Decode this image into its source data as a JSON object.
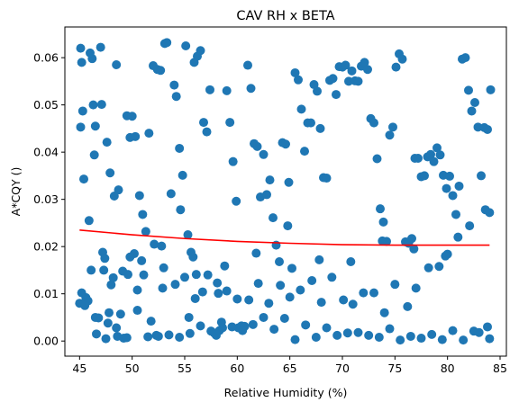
{
  "chart_data": {
    "type": "scatter",
    "title": "CAV RH x BETA",
    "xlabel": "Relative Humidity (%)",
    "ylabel": "A*CQY ()",
    "xlim": [
      43.6,
      85.6
    ],
    "ylim": [
      -0.0032,
      0.0665
    ],
    "xticks": [
      45,
      50,
      55,
      60,
      65,
      70,
      75,
      80,
      85
    ],
    "yticks": [
      0.0,
      0.01,
      0.02,
      0.03,
      0.04,
      0.05,
      0.06
    ],
    "ytick_labels": [
      "0.00",
      "0.01",
      "0.02",
      "0.03",
      "0.04",
      "0.05",
      "0.06"
    ],
    "grid": false,
    "colors": {
      "points": "#1f77b4",
      "fit": "#ff0000"
    },
    "fit_line": {
      "x": [
        45,
        50,
        55,
        60,
        65,
        70,
        75,
        80,
        84
      ],
      "y": [
        0.0235,
        0.0225,
        0.0217,
        0.0211,
        0.0207,
        0.0204,
        0.0203,
        0.0203,
        0.0203
      ]
    },
    "points": {
      "x": [
        45.1,
        45.2,
        45.3,
        45.1,
        45.6,
        45.8,
        45.0,
        45.5,
        46.2,
        46.0,
        46.5,
        46.3,
        47.0,
        47.1,
        47.6,
        47.9,
        46.4,
        47.2,
        47.4,
        47.8,
        46.8,
        45.4,
        45.9,
        46.6,
        47.7,
        48.5,
        48.7,
        48.3,
        48.0,
        48.9,
        49.5,
        49.8,
        48.6,
        49.2,
        50.0,
        50.3,
        50.7,
        49.6,
        50.5,
        51.0,
        51.3,
        50.9,
        51.6,
        52.0,
        52.4,
        52.7,
        53.1,
        53.3,
        51.8,
        52.3,
        52.9,
        53.7,
        54.0,
        54.2,
        54.5,
        54.8,
        55.1,
        54.6,
        55.3,
        55.6,
        55.9,
        56.2,
        56.5,
        56.8,
        57.1,
        57.4,
        56.0,
        55.4,
        56.7,
        57.8,
        58.0,
        58.3,
        58.6,
        58.1,
        59.0,
        59.3,
        59.6,
        59.9,
        60.1,
        60.4,
        60.7,
        61.0,
        61.3,
        61.6,
        61.9,
        62.2,
        62.5,
        62.8,
        63.1,
        63.4,
        63.7,
        64.0,
        64.3,
        64.6,
        64.9,
        65.2,
        65.5,
        65.8,
        66.1,
        66.4,
        66.7,
        67.0,
        67.3,
        67.6,
        67.9,
        68.2,
        68.5,
        68.8,
        69.1,
        69.4,
        69.7,
        70.0,
        70.3,
        70.6,
        70.9,
        71.2,
        71.5,
        71.8,
        72.1,
        72.4,
        72.7,
        73.0,
        73.3,
        73.6,
        73.9,
        74.2,
        74.5,
        74.8,
        75.1,
        75.4,
        75.7,
        76.0,
        76.3,
        76.6,
        76.9,
        77.2,
        77.5,
        77.8,
        78.1,
        78.4,
        78.7,
        79.0,
        79.3,
        79.6,
        79.9,
        80.2,
        80.5,
        80.8,
        81.1,
        81.4,
        81.7,
        82.0,
        82.3,
        82.6,
        82.9,
        83.2,
        83.5,
        83.8,
        84.1,
        84.0,
        83.6,
        82.1,
        81.0,
        80.0,
        79.2,
        78.2,
        77.0,
        76.2,
        75.0,
        74.0,
        73.0,
        72.0,
        71.0,
        70.1,
        69.0,
        68.0,
        67.1,
        66.0,
        65.0,
        64.1,
        63.0,
        62.0,
        61.1,
        60.0,
        59.0,
        58.2,
        57.2,
        56.1,
        55.0,
        54.1,
        53.0,
        52.1,
        51.1,
        50.2,
        49.1,
        48.2,
        47.3,
        46.1,
        45.2,
        83.0,
        84.0,
        81.5,
        79.5,
        77.5,
        75.5,
        73.5,
        71.5,
        69.5,
        67.5,
        65.5,
        63.5,
        61.5,
        59.5,
        57.5,
        55.5,
        53.5,
        51.5,
        49.5,
        47.5,
        82.5,
        80.5,
        78.5,
        76.5,
        74.5,
        72.5,
        70.5,
        68.5,
        66.5,
        64.5,
        62.5,
        60.5,
        58.5,
        56.5,
        54.5,
        52.5,
        50.5,
        48.5,
        46.5,
        83.8,
        79.8,
        76.8,
        73.8,
        70.8,
        67.8,
        64.8,
        61.8,
        58.8,
        55.8,
        52.8,
        49.8
      ],
      "y": [
        0.062,
        0.059,
        0.0487,
        0.0453,
        0.0092,
        0.0085,
        0.008,
        0.0075,
        0.0598,
        0.061,
        0.0455,
        0.05,
        0.0622,
        0.0501,
        0.0421,
        0.0356,
        0.0394,
        0.0188,
        0.0175,
        0.006,
        0.0049,
        0.0343,
        0.0255,
        0.0015,
        0.0038,
        0.0585,
        0.032,
        0.0307,
        0.0119,
        0.0057,
        0.0477,
        0.0431,
        0.001,
        0.0006,
        0.0476,
        0.0433,
        0.0308,
        0.0141,
        0.0108,
        0.0268,
        0.0232,
        0.017,
        0.044,
        0.0583,
        0.0575,
        0.0573,
        0.063,
        0.0632,
        0.0042,
        0.0012,
        0.0112,
        0.0312,
        0.0542,
        0.0518,
        0.0408,
        0.0351,
        0.0625,
        0.0278,
        0.0225,
        0.0188,
        0.059,
        0.0603,
        0.0615,
        0.0463,
        0.0443,
        0.0532,
        0.009,
        0.005,
        0.0104,
        0.0017,
        0.0012,
        0.0022,
        0.0028,
        0.0123,
        0.053,
        0.0463,
        0.038,
        0.0296,
        0.0028,
        0.0032,
        0.0031,
        0.0584,
        0.0535,
        0.0418,
        0.0412,
        0.0305,
        0.0395,
        0.031,
        0.0341,
        0.0261,
        0.0203,
        0.0168,
        0.042,
        0.0417,
        0.0336,
        0.0154,
        0.0568,
        0.0553,
        0.0491,
        0.0402,
        0.0462,
        0.0462,
        0.0543,
        0.0529,
        0.045,
        0.0346,
        0.0345,
        0.0552,
        0.0556,
        0.0522,
        0.0581,
        0.058,
        0.0584,
        0.055,
        0.0572,
        0.0551,
        0.055,
        0.0582,
        0.059,
        0.0575,
        0.0471,
        0.0462,
        0.0386,
        0.028,
        0.0252,
        0.0211,
        0.0436,
        0.0453,
        0.058,
        0.0608,
        0.0597,
        0.021,
        0.0207,
        0.0217,
        0.0387,
        0.0387,
        0.0348,
        0.035,
        0.039,
        0.0395,
        0.038,
        0.0409,
        0.0394,
        0.0351,
        0.0323,
        0.0349,
        0.0308,
        0.0268,
        0.0328,
        0.0597,
        0.06,
        0.0531,
        0.0487,
        0.0505,
        0.0453,
        0.035,
        0.0452,
        0.0448,
        0.0532,
        0.0272,
        0.0278,
        0.0244,
        0.022,
        0.0184,
        0.0158,
        0.0155,
        0.0112,
        0.0073,
        0.012,
        0.006,
        0.0102,
        0.0102,
        0.0078,
        0.0087,
        0.0135,
        0.0082,
        0.0128,
        0.0108,
        0.0093,
        0.0118,
        0.008,
        0.0122,
        0.0087,
        0.0089,
        0.0106,
        0.0101,
        0.014,
        0.0141,
        0.0135,
        0.012,
        0.0155,
        0.0205,
        0.014,
        0.0185,
        0.0148,
        0.0134,
        0.015,
        0.015,
        0.0102,
        0.0018,
        0.0005,
        0.0002,
        0.0003,
        0.0006,
        0.0002,
        0.0008,
        0.0018,
        0.0012,
        0.0008,
        0.0003,
        0.0025,
        0.0035,
        0.003,
        0.0021,
        0.0016,
        0.0013,
        0.0009,
        0.0007,
        0.0005,
        0.0021,
        0.0022,
        0.0014,
        0.001,
        0.0026,
        0.0012,
        0.0017,
        0.0028,
        0.0034,
        0.0048,
        0.005,
        0.0022,
        0.004,
        0.0032,
        0.0008,
        0.001,
        0.0065,
        0.0028,
        0.005,
        0.003,
        0.018,
        0.0195,
        0.0212,
        0.0168,
        0.0172,
        0.0244,
        0.0186,
        0.0159,
        0.0178,
        0.0201,
        0.0178
      ],
      "marker": "circle"
    }
  }
}
